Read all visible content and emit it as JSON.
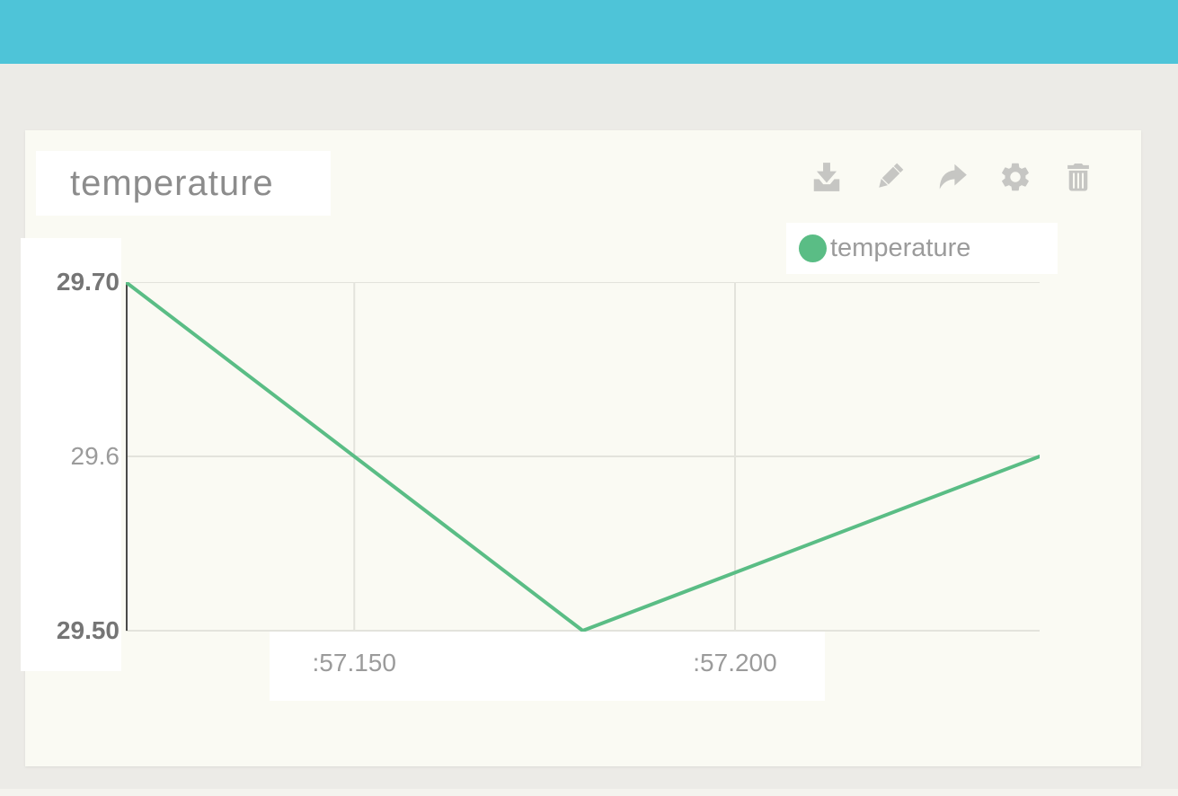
{
  "topbar": {
    "color": "#4EC4D8"
  },
  "widget": {
    "title": "temperature",
    "toolbar": [
      {
        "name": "download",
        "icon": "download-icon"
      },
      {
        "name": "edit",
        "icon": "pencil-icon"
      },
      {
        "name": "share",
        "icon": "share-arrow-icon"
      },
      {
        "name": "settings",
        "icon": "gear-icon"
      },
      {
        "name": "delete",
        "icon": "trash-icon"
      }
    ],
    "legend": {
      "label": "temperature",
      "swatch_color": "#5ABD85"
    }
  },
  "chart_data": {
    "type": "line",
    "title": "temperature",
    "series": [
      {
        "name": "temperature",
        "color": "#5ABD85",
        "points": [
          {
            "x": 57.12,
            "y": 29.7
          },
          {
            "x": 57.18,
            "y": 29.5
          },
          {
            "x": 57.24,
            "y": 29.6
          }
        ]
      }
    ],
    "xlim": [
      57.12,
      57.24
    ],
    "ylim": [
      29.5,
      29.7
    ],
    "x_ticks": [
      {
        "value": 57.15,
        "label": ":57.150"
      },
      {
        "value": 57.2,
        "label": ":57.200"
      }
    ],
    "y_ticks": [
      {
        "value": 29.7,
        "label": "29.70",
        "major": true
      },
      {
        "value": 29.6,
        "label": "29.6",
        "major": false
      },
      {
        "value": 29.5,
        "label": "29.50",
        "major": true
      }
    ],
    "grid": true,
    "legend_position": "top-right",
    "axis_color": "#4A4A4A",
    "grid_color": "#E3E3DC"
  },
  "colors": {
    "page_background": "#ECEBE7",
    "card_background": "#FAFAF3",
    "label_panel": "#FFFFFF",
    "icon_gray": "#C6C6C3",
    "title_text": "#8C8C8C",
    "tick_minor": "#9B9B9B",
    "tick_major": "#757575"
  }
}
